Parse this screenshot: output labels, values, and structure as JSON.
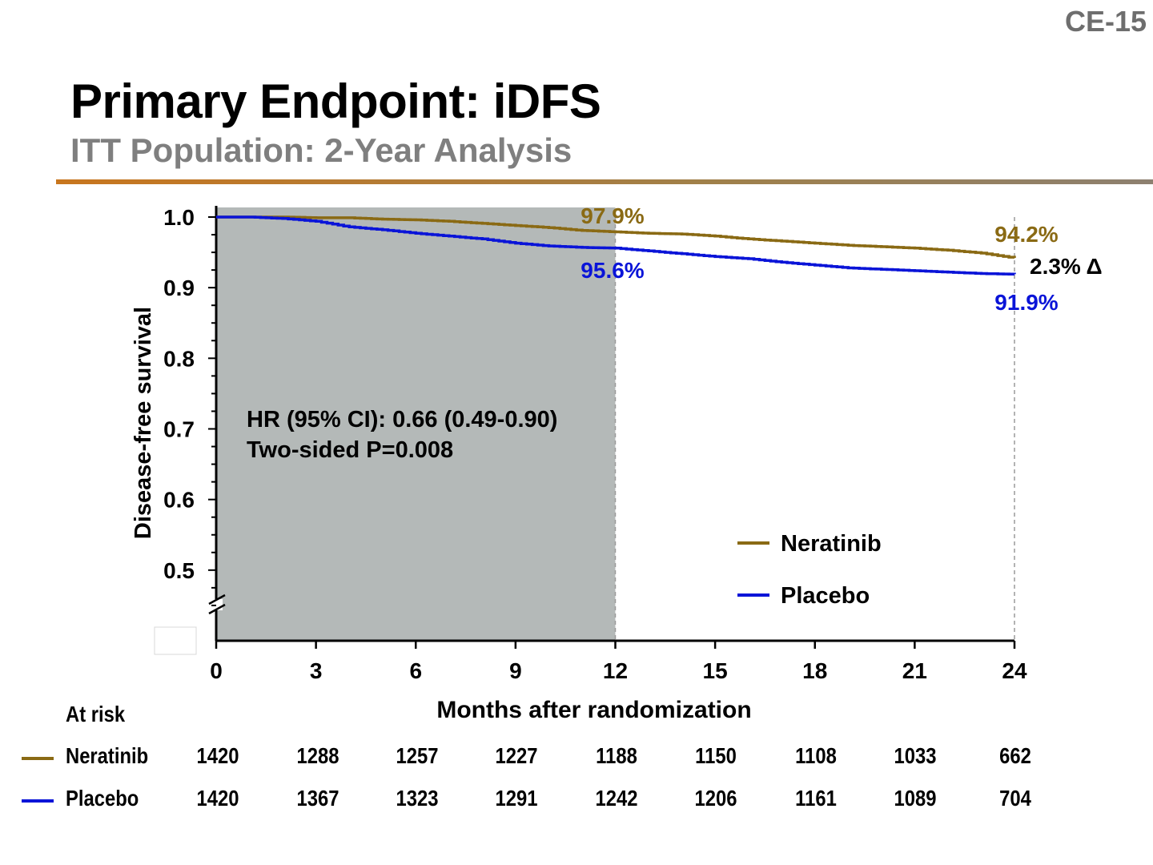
{
  "slide_number": "CE-15",
  "title": "Primary Endpoint: iDFS",
  "subtitle": "ITT Population: 2-Year Analysis",
  "colors": {
    "neratinib": "#8a6a14",
    "placebo": "#0a14d8",
    "shade": "#b4b9b8",
    "rule": "#c8761e"
  },
  "chart_data": {
    "type": "line",
    "xlabel": "Months after randomization",
    "ylabel": "Disease-free survival",
    "xlim": [
      0,
      24
    ],
    "ylim": [
      0.4,
      1.0
    ],
    "x_ticks": [
      "0",
      "3",
      "6",
      "9",
      "12",
      "15",
      "18",
      "21",
      "24"
    ],
    "y_ticks": [
      "0.5",
      "0.6",
      "0.7",
      "0.8",
      "0.9",
      "1.0"
    ],
    "shaded_region": [
      0,
      12
    ],
    "series": [
      {
        "name": "Neratinib",
        "x": [
          0,
          1,
          2,
          3,
          4,
          5,
          6,
          7,
          8,
          9,
          10,
          11,
          12,
          13,
          14,
          15,
          16,
          17,
          18,
          19,
          20,
          21,
          22,
          23,
          24
        ],
        "y": [
          1.0,
          1.0,
          1.0,
          0.999,
          0.999,
          0.997,
          0.996,
          0.994,
          0.991,
          0.988,
          0.985,
          0.981,
          0.979,
          0.977,
          0.976,
          0.973,
          0.969,
          0.966,
          0.963,
          0.96,
          0.958,
          0.956,
          0.953,
          0.949,
          0.942
        ]
      },
      {
        "name": "Placebo",
        "x": [
          0,
          1,
          2,
          3,
          4,
          5,
          6,
          7,
          8,
          9,
          10,
          11,
          12,
          13,
          14,
          15,
          16,
          17,
          18,
          19,
          20,
          21,
          22,
          23,
          24
        ],
        "y": [
          1.0,
          1.0,
          0.998,
          0.994,
          0.986,
          0.982,
          0.977,
          0.973,
          0.969,
          0.963,
          0.959,
          0.957,
          0.956,
          0.952,
          0.948,
          0.944,
          0.941,
          0.936,
          0.932,
          0.928,
          0.926,
          0.924,
          0.922,
          0.92,
          0.919
        ]
      }
    ],
    "annotations": {
      "ner_12": "97.9%",
      "pla_12": "95.6%",
      "ner_24": "94.2%",
      "pla_24": "91.9%",
      "delta": "2.3% Δ",
      "hr_line1": "HR (95% CI): 0.66 (0.49-0.90)",
      "hr_line2": "Two-sided P=0.008"
    },
    "legend": [
      "Neratinib",
      "Placebo"
    ],
    "legend_position": "bottom-right"
  },
  "at_risk": {
    "title": "At risk",
    "rows": [
      {
        "label": "Neratinib",
        "values": [
          "1420",
          "1288",
          "1257",
          "1227",
          "1188",
          "1150",
          "1108",
          "1033",
          "662"
        ]
      },
      {
        "label": "Placebo",
        "values": [
          "1420",
          "1367",
          "1323",
          "1291",
          "1242",
          "1206",
          "1161",
          "1089",
          "704"
        ]
      }
    ]
  }
}
